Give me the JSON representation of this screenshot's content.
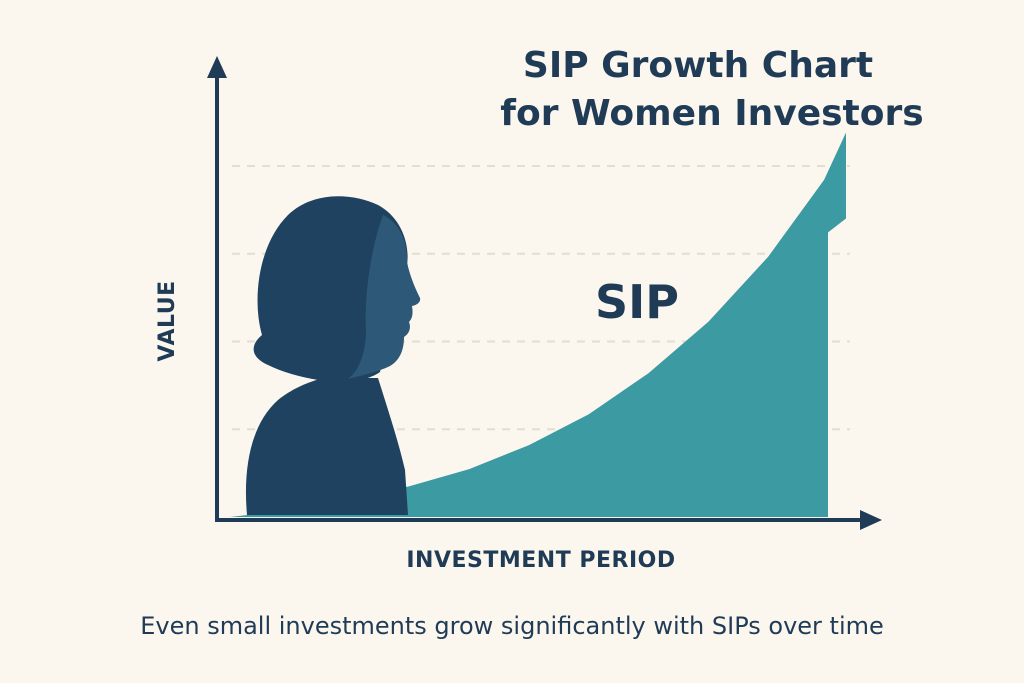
{
  "chart_data": {
    "type": "area",
    "title_lines": [
      "SIP Growth Chart",
      "for Women Investors"
    ],
    "xlabel": "INVESTMENT PERIOD",
    "ylabel": "VALUE",
    "series": [
      {
        "name": "SIP",
        "x": [
          0,
          0.1,
          0.2,
          0.3,
          0.4,
          0.5,
          0.6,
          0.7,
          0.8,
          0.9,
          1.0
        ],
        "values": [
          0,
          0.02,
          0.05,
          0.09,
          0.14,
          0.21,
          0.3,
          0.42,
          0.57,
          0.76,
          1.0
        ]
      }
    ],
    "ylim": [
      0,
      1.2
    ],
    "xlim": [
      0,
      1.0
    ],
    "grid": "horizontal-dashed",
    "x_ticks_labeled": false,
    "y_ticks_labeled": false,
    "trend_arrow": true
  },
  "caption": "Even small investments grow significantly with SIPs over time",
  "illustration": {
    "subject": "woman-silhouette-profile",
    "facing": "right"
  },
  "colors": {
    "background": "#fbf6ee",
    "text": "#1f3b56",
    "axis": "#1f3b56",
    "area": "#3c9aa3",
    "silhouette_hair": "#1e4260",
    "silhouette_face": "#2e5878",
    "grid": "#e3ddd2"
  }
}
